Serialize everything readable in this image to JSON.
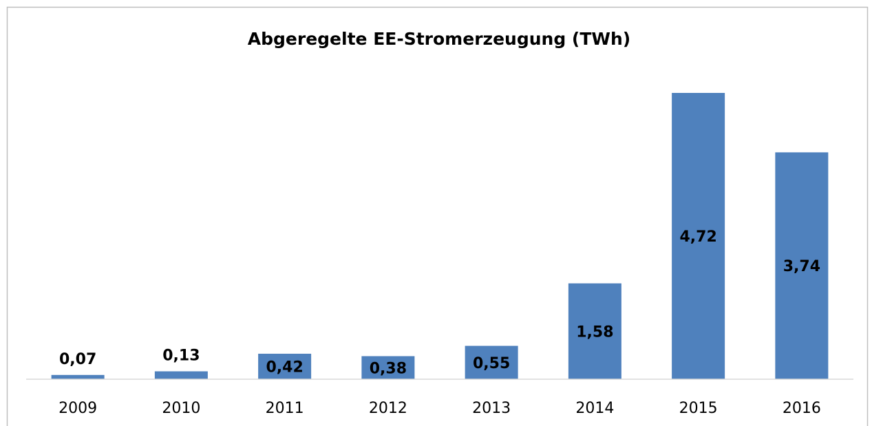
{
  "chart_data": {
    "type": "bar",
    "title": "Abgeregelte EE-Stromerzeugung (TWh)",
    "categories": [
      "2009",
      "2010",
      "2011",
      "2012",
      "2013",
      "2014",
      "2015",
      "2016"
    ],
    "values": [
      0.07,
      0.13,
      0.42,
      0.38,
      0.55,
      1.58,
      4.72,
      3.74
    ],
    "value_labels": [
      "0,07",
      "0,13",
      "0,42",
      "0,38",
      "0,55",
      "1,58",
      "4,72",
      "3,74"
    ],
    "color": "#4f81bd"
  }
}
